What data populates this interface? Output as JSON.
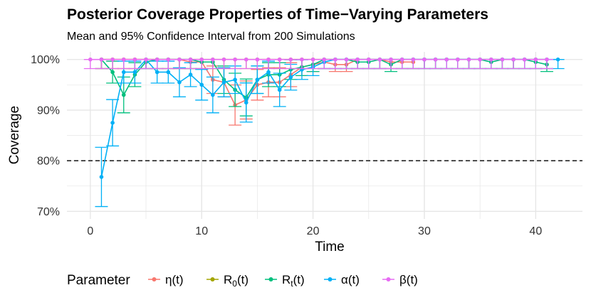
{
  "chart_data": {
    "type": "line",
    "title": "Posterior Coverage Properties of Time−Varying Parameters",
    "subtitle": "Mean and 95% Confidence Interval from 200 Simulations",
    "xlabel": "Time",
    "ylabel": "Coverage",
    "xlim": [
      -2.1,
      44.2
    ],
    "ylim": [
      0.685,
      1.015
    ],
    "x_ticks": [
      0,
      10,
      20,
      30,
      40
    ],
    "y_ticks": [
      {
        "value": 0.7,
        "label": "70%"
      },
      {
        "value": 0.8,
        "label": "80%"
      },
      {
        "value": 0.9,
        "label": "90%"
      },
      {
        "value": 1.0,
        "label": "100%"
      }
    ],
    "reference_line": {
      "value": 0.8,
      "style": "dashed",
      "color": "#000000"
    },
    "grid": true,
    "legend": {
      "title": "Parameter",
      "position": "bottom"
    },
    "series": [
      {
        "label_main": "η(t)",
        "label_sub": "",
        "color": "#F8766D",
        "x": [
          1,
          2,
          3,
          4,
          5,
          6,
          7,
          8,
          9,
          10,
          11,
          12,
          13,
          14,
          15,
          16,
          17,
          18,
          19,
          20,
          21,
          22,
          23,
          24,
          25,
          26,
          27,
          28,
          29
        ],
        "y": [
          1.0,
          1.0,
          1.0,
          1.0,
          1.0,
          1.0,
          1.0,
          1.0,
          0.995,
          0.995,
          0.96,
          0.955,
          0.91,
          0.92,
          0.95,
          0.955,
          0.955,
          0.97,
          0.985,
          0.99,
          0.995,
          0.99,
          0.99,
          1.0,
          1.0,
          1.0,
          0.995,
          0.995,
          0.995
        ]
      },
      {
        "label_main": "R",
        "label_sub": "0",
        "color": "#A3A500",
        "x": [
          1,
          2,
          3,
          4,
          5,
          6,
          7,
          8,
          9,
          10,
          11,
          12,
          13,
          14,
          15,
          16,
          17,
          18,
          19,
          20,
          21,
          22,
          23,
          24,
          25,
          26,
          27,
          28,
          29,
          30,
          31,
          32,
          33,
          34,
          35,
          36,
          37,
          38,
          39,
          40,
          41
        ],
        "y": [
          1.0,
          1.0,
          1.0,
          1.0,
          1.0,
          1.0,
          1.0,
          1.0,
          1.0,
          1.0,
          1.0,
          1.0,
          1.0,
          1.0,
          1.0,
          1.0,
          1.0,
          1.0,
          1.0,
          1.0,
          1.0,
          1.0,
          1.0,
          1.0,
          1.0,
          1.0,
          1.0,
          1.0,
          1.0,
          1.0,
          1.0,
          1.0,
          1.0,
          1.0,
          1.0,
          1.0,
          1.0,
          1.0,
          1.0,
          1.0,
          1.0
        ]
      },
      {
        "label_main": "R",
        "label_sub": "t",
        "color": "#00BF7D",
        "x": [
          1,
          2,
          3,
          4,
          5,
          6,
          7,
          8,
          9,
          10,
          11,
          12,
          13,
          14,
          15,
          16,
          17,
          18,
          19,
          20,
          21,
          22,
          23,
          24,
          25,
          26,
          27,
          28,
          29,
          30,
          31,
          32,
          33,
          34,
          35,
          36,
          37,
          38,
          39,
          40,
          41
        ],
        "y": [
          1.0,
          0.975,
          0.93,
          0.97,
          0.995,
          1.0,
          1.0,
          1.0,
          1.0,
          0.995,
          0.995,
          0.96,
          0.94,
          0.925,
          0.96,
          0.97,
          0.97,
          0.98,
          0.985,
          0.99,
          1.0,
          1.0,
          1.0,
          0.995,
          0.995,
          1.0,
          0.99,
          1.0,
          1.0,
          1.0,
          1.0,
          1.0,
          1.0,
          1.0,
          1.0,
          0.995,
          1.0,
          1.0,
          1.0,
          0.995,
          0.99
        ]
      },
      {
        "label_main": "α(t)",
        "label_sub": "",
        "color": "#00B0F6",
        "x": [
          1,
          2,
          3,
          4,
          5,
          6,
          7,
          8,
          9,
          10,
          11,
          12,
          13,
          14,
          15,
          16,
          17,
          18,
          19,
          20,
          21,
          22,
          23,
          24,
          25,
          26,
          27,
          28,
          29,
          30,
          31,
          32,
          33,
          34,
          35,
          36,
          37,
          38,
          39,
          40,
          41,
          42
        ],
        "y": [
          0.768,
          0.875,
          0.975,
          0.975,
          1.0,
          0.975,
          0.975,
          0.955,
          0.97,
          0.95,
          0.93,
          0.955,
          0.96,
          0.915,
          0.96,
          0.975,
          0.94,
          0.965,
          0.98,
          0.985,
          0.995,
          1.0,
          1.0,
          1.0,
          1.0,
          1.0,
          1.0,
          1.0,
          1.0,
          1.0,
          1.0,
          1.0,
          1.0,
          1.0,
          1.0,
          1.0,
          1.0,
          1.0,
          1.0,
          1.0,
          1.0,
          1.0
        ]
      },
      {
        "label_main": "β(t)",
        "label_sub": "",
        "color": "#E76BF3",
        "x": [
          0,
          1,
          2,
          3,
          4,
          5,
          6,
          7,
          8,
          9,
          10,
          11,
          12,
          13,
          14,
          15,
          16,
          17,
          18,
          19,
          20,
          21,
          22,
          23,
          24,
          25,
          26,
          27,
          28,
          29,
          30,
          31,
          32,
          33,
          34,
          35,
          36,
          37,
          38,
          39,
          40,
          41
        ],
        "y": [
          1.0,
          1.0,
          1.0,
          1.0,
          1.0,
          1.0,
          1.0,
          1.0,
          1.0,
          1.0,
          1.0,
          1.0,
          1.0,
          1.0,
          1.0,
          1.0,
          1.0,
          1.0,
          1.0,
          1.0,
          1.0,
          1.0,
          1.0,
          1.0,
          1.0,
          1.0,
          1.0,
          1.0,
          1.0,
          1.0,
          1.0,
          1.0,
          1.0,
          1.0,
          1.0,
          1.0,
          1.0,
          1.0,
          1.0,
          1.0,
          1.0,
          1.0
        ]
      }
    ]
  }
}
